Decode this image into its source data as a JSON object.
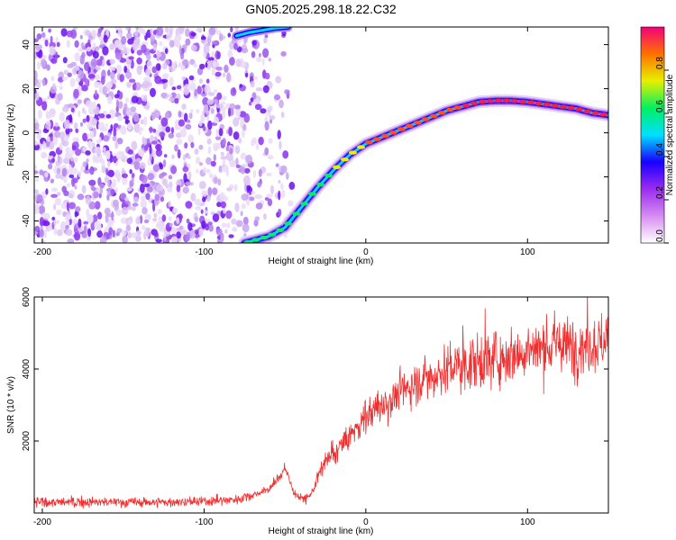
{
  "title": "GN05.2025.298.18.22.C32",
  "chart_data": [
    {
      "type": "heatmap",
      "title": "GN05.2025.298.18.22.C32",
      "xlabel": "Height of straight line (km)",
      "ylabel": "Frequency (Hz)",
      "xlim": [
        -205,
        150
      ],
      "ylim": [
        -50,
        48
      ],
      "x_ticks": [
        "-200",
        "-100",
        "0",
        "100"
      ],
      "y_ticks": [
        "-40",
        "-20",
        "0",
        "20",
        "40"
      ],
      "colorbar": {
        "label": "Normalized spectral amplitude",
        "range": [
          0,
          1
        ],
        "ticks": [
          "0.0",
          "0.2",
          "0.4",
          "0.6",
          "0.8"
        ],
        "colors": [
          "#ffffff",
          "#d68cf0",
          "#9a2cf0",
          "#1800ff",
          "#00e0ff",
          "#00f060",
          "#e8f000",
          "#ff7000",
          "#f2007a"
        ]
      },
      "noise_region_x": [
        -205,
        -45
      ],
      "ridge": {
        "x": [
          -75,
          -60,
          -50,
          -40,
          -30,
          -20,
          -10,
          0,
          10,
          20,
          30,
          40,
          50,
          60,
          70,
          80,
          90,
          100,
          110,
          120,
          130,
          140,
          150
        ],
        "y": [
          -50,
          -47,
          -43,
          -34,
          -25,
          -17,
          -10,
          -5,
          -2,
          1,
          4,
          7,
          10,
          12,
          14,
          14.5,
          14.5,
          14,
          13,
          12,
          11,
          9,
          8
        ]
      },
      "upper_ridge": {
        "x": [
          -80,
          -72,
          -64,
          -56,
          -48
        ],
        "y": [
          44,
          45.5,
          46.5,
          47.5,
          48
        ]
      }
    },
    {
      "type": "line",
      "xlabel": "Height of straight line (km)",
      "ylabel": "SNR (10 * v/v)",
      "xlim": [
        -205,
        150
      ],
      "ylim": [
        0,
        6000
      ],
      "x_ticks": [
        "-200",
        "-100",
        "0",
        "100"
      ],
      "y_ticks": [
        "2000",
        "4000",
        "6000"
      ],
      "series": [
        {
          "name": "SNR",
          "color": "#f03030",
          "x": [
            -205,
            -180,
            -160,
            -140,
            -120,
            -100,
            -80,
            -70,
            -60,
            -55,
            -52,
            -50,
            -48,
            -46,
            -44,
            -40,
            -35,
            -32,
            -30,
            -27,
            -25,
            -20,
            -15,
            -10,
            -5,
            0,
            10,
            20,
            30,
            40,
            50,
            60,
            70,
            80,
            90,
            100,
            110,
            120,
            130,
            140,
            150
          ],
          "y": [
            300,
            300,
            300,
            300,
            300,
            320,
            380,
            500,
            650,
            900,
            1100,
            1300,
            1000,
            750,
            550,
            400,
            450,
            700,
            1000,
            1200,
            1400,
            1600,
            1900,
            2100,
            2400,
            2700,
            3000,
            3300,
            3600,
            3800,
            4000,
            4100,
            4200,
            4300,
            4400,
            4500,
            4600,
            4700,
            4600,
            4700,
            4800
          ]
        }
      ]
    }
  ]
}
